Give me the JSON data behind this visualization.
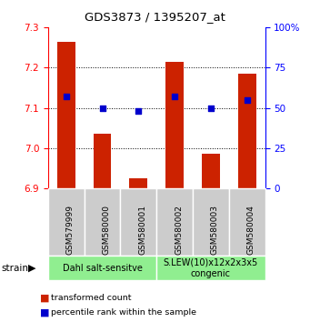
{
  "title": "GDS3873 / 1395207_at",
  "samples": [
    "GSM579999",
    "GSM580000",
    "GSM580001",
    "GSM580002",
    "GSM580003",
    "GSM580004"
  ],
  "bar_values": [
    7.265,
    7.035,
    6.925,
    7.215,
    6.985,
    7.185
  ],
  "percentile_values": [
    57,
    50,
    48,
    57,
    50,
    55
  ],
  "bar_color": "#cc2200",
  "dot_color": "#0000cc",
  "ylim_left": [
    6.9,
    7.3
  ],
  "ylim_right": [
    0,
    100
  ],
  "yticks_left": [
    6.9,
    7.0,
    7.1,
    7.2,
    7.3
  ],
  "yticks_right": [
    0,
    25,
    50,
    75,
    100
  ],
  "ytick_labels_right": [
    "0",
    "25",
    "50",
    "75",
    "100%"
  ],
  "grid_values": [
    7.0,
    7.1,
    7.2
  ],
  "group1_label": "Dahl salt-sensitve",
  "group2_label": "S.LEW(10)x12x2x3x5\ncongenic",
  "group_color": "#90ee90",
  "strain_label": "strain",
  "legend1_label": "transformed count",
  "legend2_label": "percentile rank within the sample",
  "bar_width": 0.5,
  "base_value": 6.9,
  "sample_box_color": "#cccccc",
  "sample_box_edge": "#ffffff"
}
